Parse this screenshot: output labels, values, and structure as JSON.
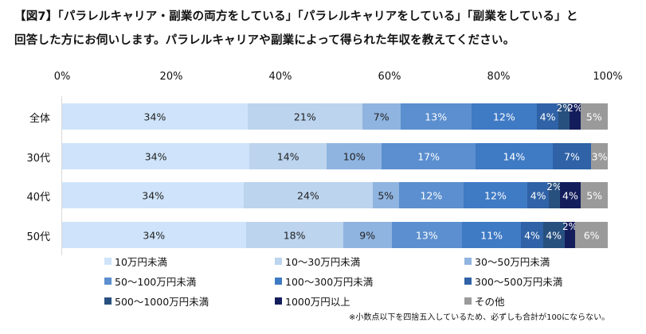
{
  "title_line1": "【図7】「パラレルキャリア・副業の両方をしている」「パラレルキャリアをしている」「副業をしている」と",
  "title_line2": "回答した方にお伺いします。パラレルキャリアや副業によって得られた年収を教えてください。",
  "note": "※小数点以下を四捨五入しているため、必ずしも合計が100にならない。",
  "chart_data": {
    "type": "bar",
    "orientation": "horizontal",
    "stacked": "percent",
    "title": "【図7】「パラレルキャリア・副業の両方をしている」「パラレルキャリアをしている」「副業をしている」と回答した方にお伺いします。パラレルキャリアや副業によって得られた年収を教えてください。",
    "xlabel": "",
    "ylabel": "",
    "xlim": [
      0,
      100
    ],
    "x_ticks": [
      "0%",
      "20%",
      "40%",
      "60%",
      "80%",
      "100%"
    ],
    "categories": [
      "全体",
      "30代",
      "40代",
      "50代"
    ],
    "legend_position": "bottom",
    "series": [
      {
        "name": "10万円未満",
        "color": "#CFE4FA",
        "label_color": "#222222",
        "values": [
          34,
          34,
          34,
          34
        ]
      },
      {
        "name": "10〜30万円未満",
        "color": "#BCD4EE",
        "label_color": "#222222",
        "values": [
          21,
          14,
          24,
          18
        ]
      },
      {
        "name": "30〜50万円未満",
        "color": "#8FB4E0",
        "label_color": "#222222",
        "values": [
          7,
          10,
          5,
          9
        ]
      },
      {
        "name": "50〜100万円未満",
        "color": "#5B8FCF",
        "label_color": "#ffffff",
        "values": [
          13,
          17,
          12,
          13
        ]
      },
      {
        "name": "100〜300万円未満",
        "color": "#3F7AC4",
        "label_color": "#ffffff",
        "values": [
          12,
          14,
          12,
          11
        ]
      },
      {
        "name": "300〜500万円未満",
        "color": "#2F62A6",
        "label_color": "#ffffff",
        "values": [
          4,
          7,
          4,
          4
        ]
      },
      {
        "name": "500〜1000万円未満",
        "color": "#28507F",
        "label_color": "#ffffff",
        "values": [
          2,
          0,
          2,
          4
        ]
      },
      {
        "name": "1000万円以上",
        "color": "#141D5C",
        "label_color": "#ffffff",
        "values": [
          2,
          0,
          4,
          2
        ]
      },
      {
        "name": "その他",
        "color": "#9A9A9A",
        "label_color": "#ffffff",
        "values": [
          5,
          3,
          5,
          6
        ]
      }
    ]
  }
}
